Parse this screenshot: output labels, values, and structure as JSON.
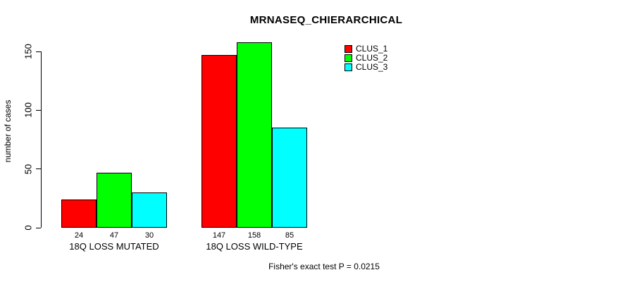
{
  "chart_data": {
    "type": "bar",
    "title": "MRNASEQ_CHIERARCHICAL",
    "ylabel": "number of cases",
    "xlabel": "",
    "categories": [
      "18Q LOSS MUTATED",
      "18Q LOSS WILD-TYPE"
    ],
    "series": [
      {
        "name": "CLUS_1",
        "color": "#ff0000",
        "values": [
          24,
          147
        ]
      },
      {
        "name": "CLUS_2",
        "color": "#00ff00",
        "values": [
          47,
          158
        ]
      },
      {
        "name": "CLUS_3",
        "color": "#00ffff",
        "values": [
          30,
          85
        ]
      }
    ],
    "show_bar_values": true,
    "yticks": [
      0,
      50,
      100,
      150
    ],
    "ylim": [
      0,
      160
    ],
    "grid": false,
    "legend_position": "top-right",
    "bar_outline_color": "#000000",
    "annotation": "Fisher's exact test P = 0.0215"
  }
}
